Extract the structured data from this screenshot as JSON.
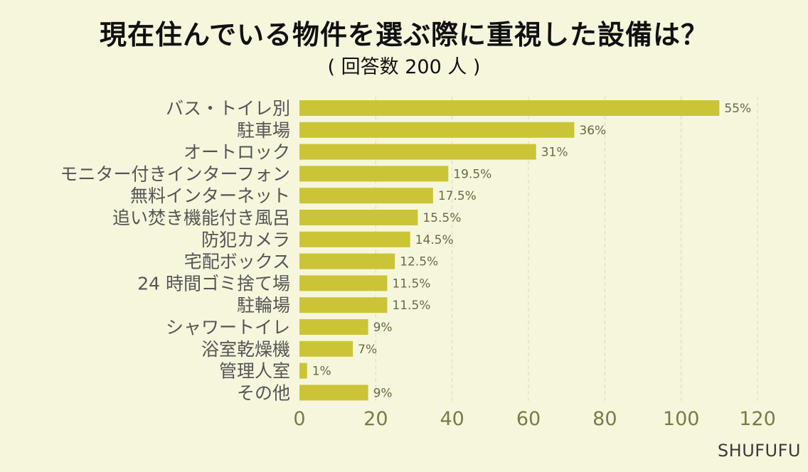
{
  "chart_data": {
    "type": "bar",
    "orientation": "horizontal",
    "title": "現在住んでいる物件を選ぶ際に重視した設備は？",
    "subtitle": "( 回答数 200 人 )",
    "categories": [
      "バス・トイレ別",
      "駐車場",
      "オートロック",
      "モニター付きインターフォン",
      "無料インターネット",
      "追い焚き機能付き風呂",
      "防犯カメラ",
      "宅配ボックス",
      "24 時間ゴミ捨て場",
      "駐輪場",
      "シャワートイレ",
      "浴室乾燥機",
      "管理人室",
      "その他"
    ],
    "values": [
      110,
      72,
      62,
      39,
      35,
      31,
      29,
      25,
      23,
      23,
      18,
      14,
      2,
      18
    ],
    "data_labels": [
      "55%",
      "36%",
      "31%",
      "19.5%",
      "17.5%",
      "15.5%",
      "14.5%",
      "12.5%",
      "11.5%",
      "11.5%",
      "9%",
      "7%",
      "1%",
      "9%"
    ],
    "xlim": [
      0,
      120
    ],
    "xticks": [
      0,
      20,
      40,
      60,
      80,
      100,
      120
    ],
    "grid": "vertical dashed",
    "bar_color": "#cbc436"
  },
  "brand": "SHUFUFU"
}
